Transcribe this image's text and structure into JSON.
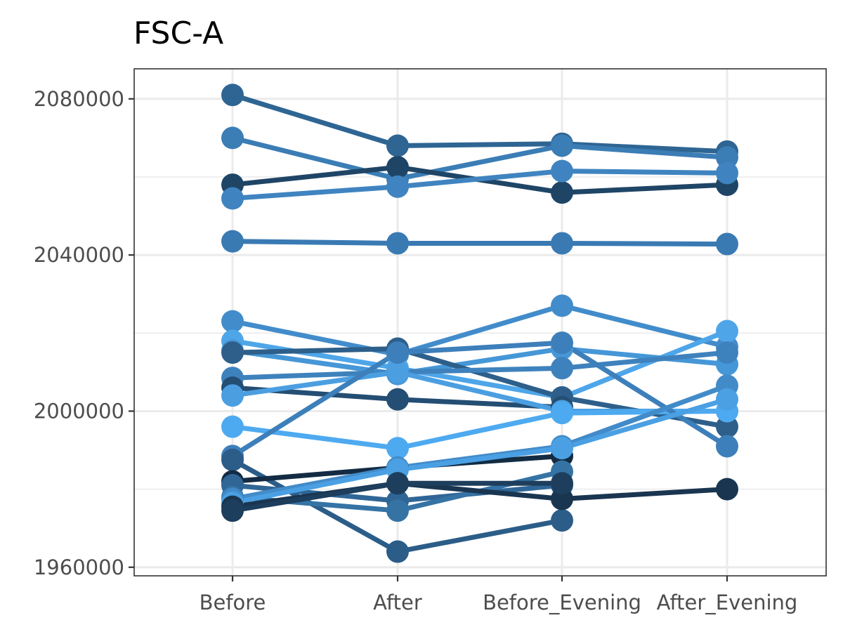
{
  "chart_data": {
    "type": "line",
    "title": "FSC-A",
    "xlabel": "",
    "ylabel": "",
    "categories": [
      "Before",
      "After",
      "Before_Evening",
      "After_Evening"
    ],
    "y_ticks": [
      1960000,
      2000000,
      2040000,
      2080000
    ],
    "y_tick_labels": [
      "1960000",
      "2000000",
      "2040000",
      "2080000"
    ],
    "ylim": [
      1957800,
      2087700
    ],
    "grid": true,
    "legend": "none",
    "color_scale": {
      "low": "#132b43",
      "high": "#56b1f7"
    },
    "series": [
      {
        "values": [
          2081000,
          2068000,
          2068500,
          2066500
        ],
        "color": "#2e6593"
      },
      {
        "values": [
          2070000,
          2059500,
          2068000,
          2065000
        ],
        "color": "#3b7db5"
      },
      {
        "values": [
          2058000,
          2062500,
          2056000,
          2058000
        ],
        "color": "#1f4566"
      },
      {
        "values": [
          2054500,
          2057500,
          2061500,
          2061000
        ],
        "color": "#3f84c0"
      },
      {
        "values": [
          2043500,
          2043000,
          2043000,
          2042800
        ],
        "color": "#3a7ab3"
      },
      {
        "values": [
          2023000,
          2014500,
          2027000,
          2016500
        ],
        "color": "#428ccb"
      },
      {
        "values": [
          2018000,
          2011000,
          2003500,
          2020500
        ],
        "color": "#4ea6e9"
      },
      {
        "values": [
          2015500,
          2009500,
          2016000,
          2012000
        ],
        "color": "#4597d7"
      },
      {
        "values": [
          2015000,
          2016000,
          2003500,
          1996000
        ],
        "color": "#2d5f8a"
      },
      {
        "values": [
          2008500,
          2010000,
          2011000,
          2015000
        ],
        "color": "#3e82bd"
      },
      {
        "values": [
          2006000,
          2003000,
          2001000,
          null
        ],
        "color": "#244e73"
      },
      {
        "values": [
          2004000,
          2010000,
          2000000,
          2000000
        ],
        "color": "#4b9fe1"
      },
      {
        "values": [
          1996000,
          1990500,
          1999500,
          2000000
        ],
        "color": "#4eaaf0"
      },
      {
        "values": [
          1988500,
          2015000,
          2017500,
          1991000
        ],
        "color": "#3d7fba"
      },
      {
        "values": [
          1987500,
          1964000,
          1972000,
          null
        ],
        "color": "#2b5d88"
      },
      {
        "values": [
          1982000,
          1985500,
          1988500,
          null
        ],
        "color": "#132b43"
      },
      {
        "values": [
          1981000,
          1977000,
          1981000,
          null
        ],
        "color": "#2f6696"
      },
      {
        "values": [
          1978000,
          1974500,
          1984500,
          null
        ],
        "color": "#3573a5"
      },
      {
        "values": [
          1977500,
          1985500,
          1991000,
          2006500
        ],
        "color": "#428bc9"
      },
      {
        "values": [
          1976500,
          1985000,
          1990500,
          2003000
        ],
        "color": "#4aa0e3"
      },
      {
        "values": [
          1975500,
          1981500,
          1977500,
          1980000
        ],
        "color": "#1a3550"
      },
      {
        "values": [
          1974500,
          1981500,
          1981500,
          null
        ],
        "color": "#1d3e5c"
      }
    ]
  }
}
